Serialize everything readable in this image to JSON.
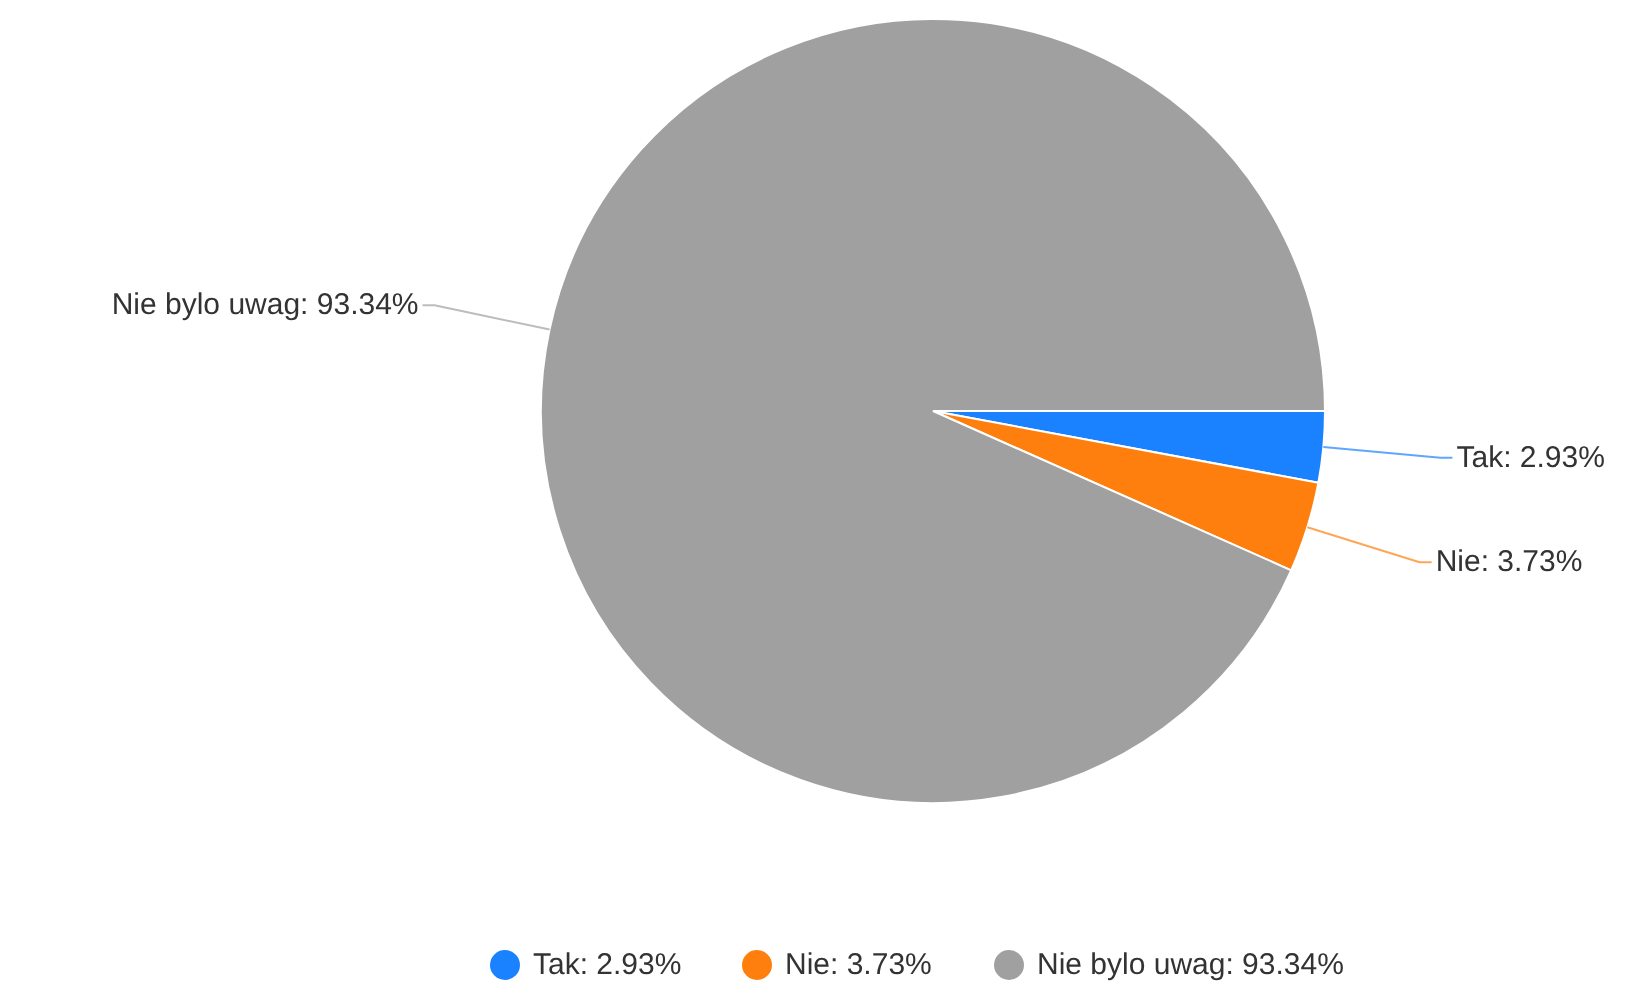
{
  "chart_data": {
    "type": "pie",
    "categories": [
      "Tak",
      "Nie",
      "Nie bylo uwag"
    ],
    "values": [
      2.93,
      3.73,
      93.34
    ],
    "colors": [
      "#1a82ff",
      "#ff7f0e",
      "#a0a0a0"
    ],
    "value_labels": [
      "2.93%",
      "3.73%",
      "93.34%"
    ],
    "legend": "bottom"
  }
}
